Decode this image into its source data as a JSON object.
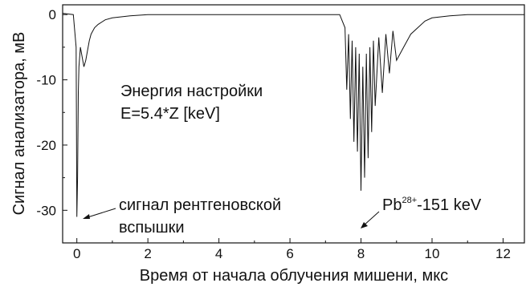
{
  "chart_data": {
    "type": "line",
    "title": "",
    "xlabel": "Время от начала облучения мишени, мкс",
    "ylabel": "Сигнал анализатора, мВ",
    "xlim": [
      -0.4,
      12.6
    ],
    "ylim": [
      -35,
      1.5
    ],
    "xticks": [
      0,
      2,
      4,
      6,
      8,
      10,
      12
    ],
    "yticks": [
      0,
      -10,
      -20,
      -30
    ],
    "grid": false,
    "line_color": "#111111",
    "series": [
      {
        "name": "",
        "x": [
          -0.4,
          -0.1,
          -0.02,
          0.0,
          0.02,
          0.04,
          0.06,
          0.1,
          0.15,
          0.2,
          0.25,
          0.3,
          0.35,
          0.4,
          0.5,
          0.6,
          0.8,
          1.0,
          1.5,
          2.0,
          4.0,
          6.0,
          7.4,
          7.55,
          7.6,
          7.65,
          7.7,
          7.75,
          7.8,
          7.85,
          7.9,
          7.95,
          8.0,
          8.05,
          8.1,
          8.15,
          8.2,
          8.25,
          8.3,
          8.35,
          8.4,
          8.5,
          8.6,
          8.7,
          8.8,
          8.9,
          9.0,
          9.2,
          9.4,
          9.6,
          9.8,
          10.0,
          10.5,
          11.0,
          12.6
        ],
        "y": [
          0.2,
          0.0,
          -5.0,
          -31.0,
          -25.0,
          -12.0,
          -8.0,
          -5.0,
          -6.5,
          -8.0,
          -7.0,
          -5.5,
          -4.0,
          -3.0,
          -2.0,
          -1.5,
          -0.8,
          -0.5,
          -0.2,
          0.0,
          0.0,
          0.0,
          0.0,
          -2.0,
          -11.5,
          -3.0,
          -16.0,
          -4.0,
          -19.5,
          -5.0,
          -21.0,
          -6.0,
          -27.0,
          -8.0,
          -25.0,
          -6.0,
          -22.0,
          -5.0,
          -18.0,
          -4.0,
          -14.0,
          -3.5,
          -12.0,
          -3.0,
          -9.0,
          -2.5,
          -7.0,
          -5.0,
          -3.0,
          -2.0,
          -1.0,
          -0.5,
          -0.2,
          0.0,
          0.0
        ]
      }
    ],
    "annotations": [
      {
        "lines": [
          "Энергия настройки",
          "E=5.4*Z [keV]"
        ]
      },
      {
        "lines": [
          "сигнал рентгеновской",
          "вспышки"
        ],
        "arrow_to": [
          0.0,
          -31.0
        ]
      },
      {
        "base": "Pb",
        "sup": "28+",
        "rest": "-151 keV",
        "arrow_to": [
          7.95,
          -32.5
        ]
      }
    ]
  }
}
